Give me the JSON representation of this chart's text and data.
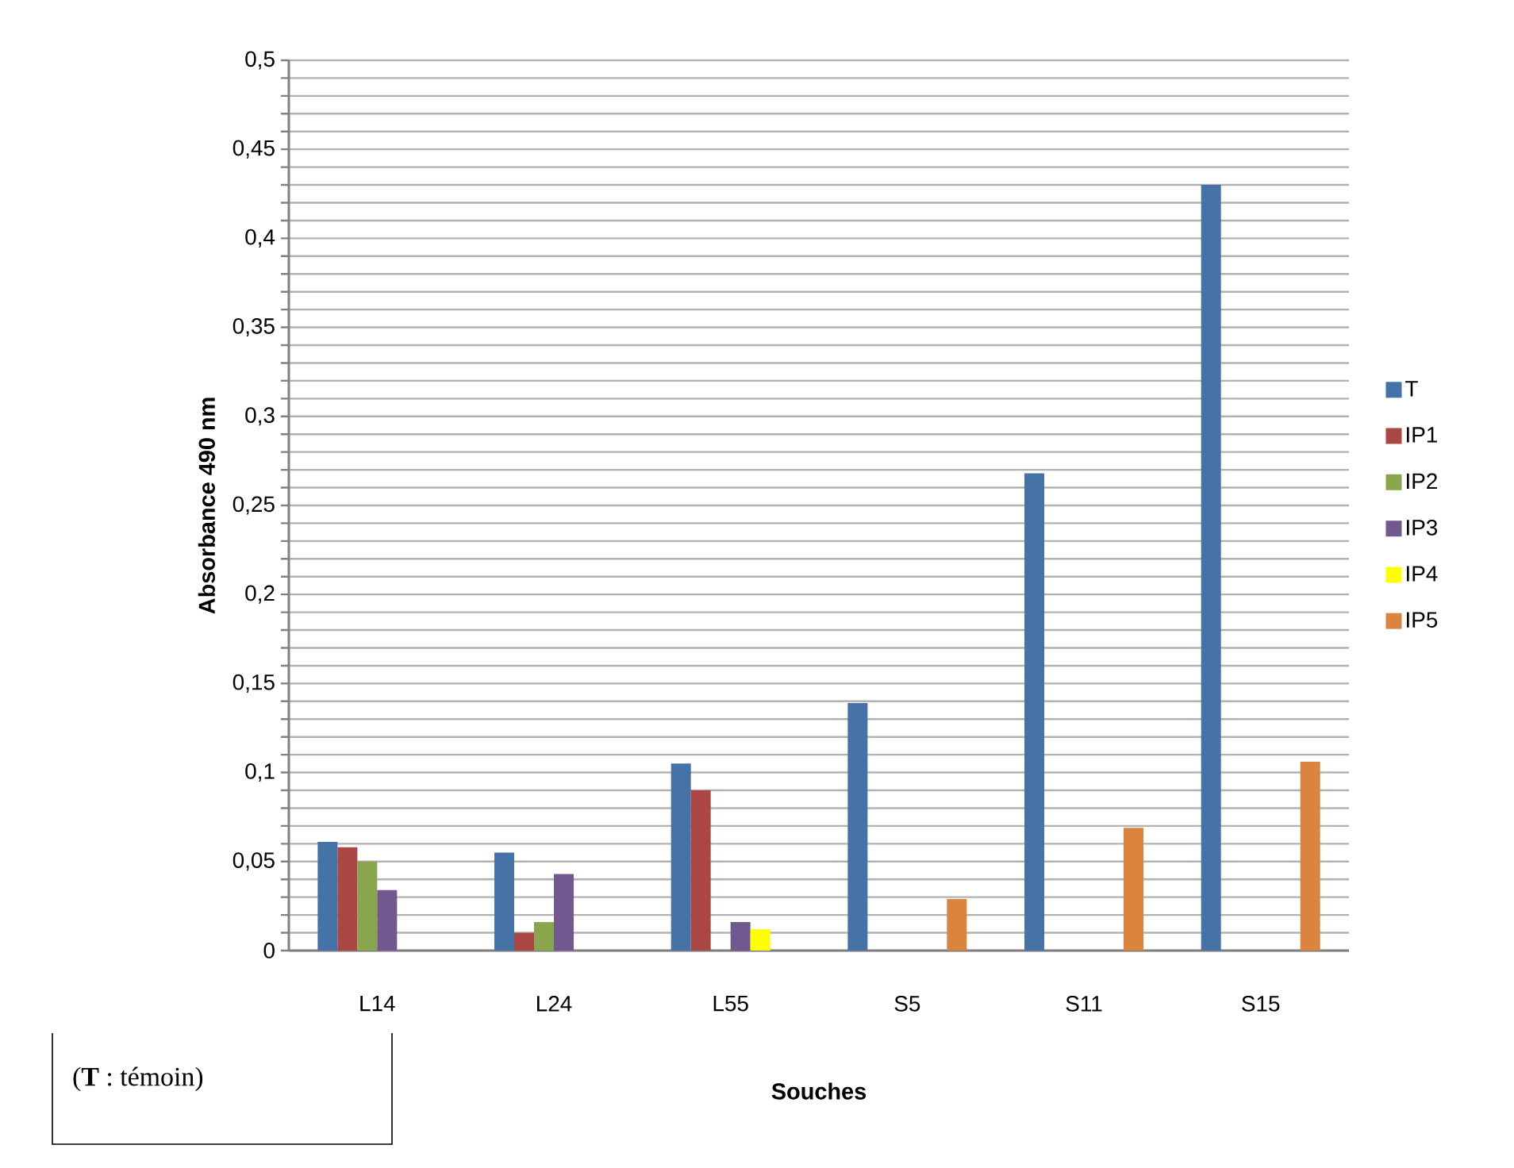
{
  "chart_data": {
    "type": "bar",
    "xlabel": "Souches",
    "ylabel": "Absorbance 490 nm",
    "categories": [
      "L14",
      "L24",
      "L55",
      "S5",
      "S11",
      "S15"
    ],
    "series": [
      {
        "name": "T",
        "color": "#4572a7",
        "values": [
          0.061,
          0.055,
          0.105,
          0.139,
          0.268,
          0.43
        ]
      },
      {
        "name": "IP1",
        "color": "#aa4643",
        "values": [
          0.058,
          0.01,
          0.09,
          null,
          null,
          null
        ]
      },
      {
        "name": "IP2",
        "color": "#89a54e",
        "values": [
          0.05,
          0.016,
          null,
          null,
          null,
          null
        ]
      },
      {
        "name": "IP3",
        "color": "#71588f",
        "values": [
          0.034,
          0.043,
          0.016,
          null,
          null,
          null
        ]
      },
      {
        "name": "IP4",
        "color": "#ffff00",
        "values": [
          null,
          null,
          0.012,
          null,
          null,
          null
        ]
      },
      {
        "name": "IP5",
        "color": "#db843d",
        "values": [
          null,
          null,
          null,
          0.029,
          0.069,
          0.106
        ]
      }
    ],
    "ylim": [
      0,
      0.5
    ],
    "yticks": [
      {
        "value": 0,
        "label": "0"
      },
      {
        "value": 0.01,
        "label": null
      },
      {
        "value": 0.02,
        "label": null
      },
      {
        "value": 0.03,
        "label": null
      },
      {
        "value": 0.04,
        "label": null
      },
      {
        "value": 0.05,
        "label": "0,05"
      },
      {
        "value": 0.06,
        "label": null
      },
      {
        "value": 0.07,
        "label": null
      },
      {
        "value": 0.08,
        "label": null
      },
      {
        "value": 0.09,
        "label": null
      },
      {
        "value": 0.1,
        "label": "0,1"
      },
      {
        "value": 0.11,
        "label": null
      },
      {
        "value": 0.12,
        "label": null
      },
      {
        "value": 0.13,
        "label": null
      },
      {
        "value": 0.14,
        "label": null
      },
      {
        "value": 0.15,
        "label": "0,15"
      },
      {
        "value": 0.16,
        "label": null
      },
      {
        "value": 0.17,
        "label": null
      },
      {
        "value": 0.18,
        "label": null
      },
      {
        "value": 0.19,
        "label": null
      },
      {
        "value": 0.2,
        "label": "0,2"
      },
      {
        "value": 0.21,
        "label": null
      },
      {
        "value": 0.22,
        "label": null
      },
      {
        "value": 0.23,
        "label": null
      },
      {
        "value": 0.24,
        "label": null
      },
      {
        "value": 0.25,
        "label": "0,25"
      },
      {
        "value": 0.26,
        "label": null
      },
      {
        "value": 0.27,
        "label": null
      },
      {
        "value": 0.28,
        "label": null
      },
      {
        "value": 0.29,
        "label": null
      },
      {
        "value": 0.3,
        "label": "0,3"
      },
      {
        "value": 0.31,
        "label": null
      },
      {
        "value": 0.32,
        "label": null
      },
      {
        "value": 0.33,
        "label": null
      },
      {
        "value": 0.34,
        "label": null
      },
      {
        "value": 0.35,
        "label": "0,35"
      },
      {
        "value": 0.36,
        "label": null
      },
      {
        "value": 0.37,
        "label": null
      },
      {
        "value": 0.38,
        "label": null
      },
      {
        "value": 0.39,
        "label": null
      },
      {
        "value": 0.4,
        "label": "0,4"
      },
      {
        "value": 0.41,
        "label": null
      },
      {
        "value": 0.42,
        "label": null
      },
      {
        "value": 0.43,
        "label": null
      },
      {
        "value": 0.44,
        "label": null
      },
      {
        "value": 0.45,
        "label": "0,45"
      },
      {
        "value": 0.46,
        "label": null
      },
      {
        "value": 0.47,
        "label": null
      },
      {
        "value": 0.48,
        "label": null
      },
      {
        "value": 0.49,
        "label": null
      },
      {
        "value": 0.5,
        "label": "0,5"
      }
    ],
    "grid": "y",
    "legend": "right",
    "annotations": [
      "(**T** : témoin)"
    ]
  }
}
